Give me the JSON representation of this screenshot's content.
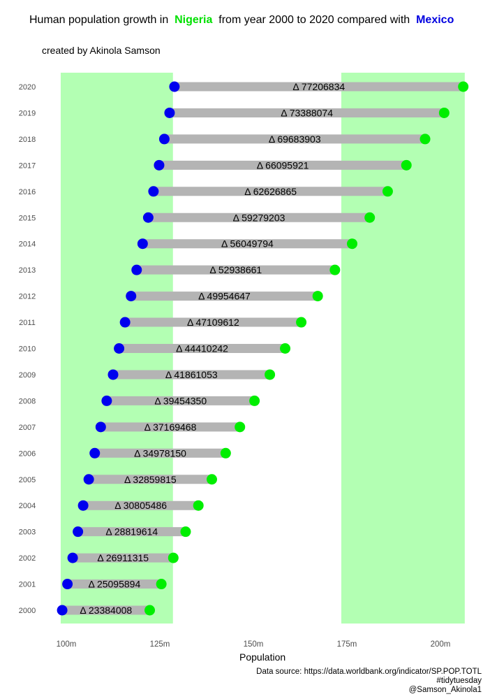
{
  "header": {
    "title_part1": "Human population growth in",
    "title_country1": "Nigeria",
    "title_part2": "from year 2000 to 2020 compared with",
    "title_country2": "Mexico",
    "subtitle": "created by Akinola Samson"
  },
  "caption": {
    "line1": "Data source: https://data.worldbank.org/indicator/SP.POP.TOTL",
    "line2": "#tidytuesday",
    "line3": "@Samson_Akinola1"
  },
  "colors": {
    "nigeria": "#00ee00",
    "mexico": "#0000ee",
    "band": "#b3ffb3",
    "segment": "#b4b4b4",
    "tick_text": "#4d4d4d"
  },
  "chart_data": {
    "type": "dumbbell",
    "xlabel": "Population",
    "ylabel": "",
    "xlim": [
      98000000,
      208000000
    ],
    "x_ticks": [
      100000000,
      125000000,
      150000000,
      175000000,
      200000000
    ],
    "x_tick_labels": [
      "100m",
      "125m",
      "150m",
      "175m",
      "200m"
    ],
    "shaded_ranges": [
      [
        98500000,
        128500000
      ],
      [
        173500000,
        206500000
      ]
    ],
    "categories": [
      "2000",
      "2001",
      "2002",
      "2003",
      "2004",
      "2005",
      "2006",
      "2007",
      "2008",
      "2009",
      "2010",
      "2011",
      "2012",
      "2013",
      "2014",
      "2015",
      "2016",
      "2017",
      "2018",
      "2019",
      "2020"
    ],
    "series": [
      {
        "name": "Mexico",
        "values": [
          98900000,
          100300000,
          101700000,
          103100000,
          104500000,
          106000000,
          107600000,
          109200000,
          110800000,
          112500000,
          114100000,
          115700000,
          117300000,
          118800000,
          120400000,
          121900000,
          123300000,
          124800000,
          126200000,
          127600000,
          128900000
        ]
      },
      {
        "name": "Nigeria",
        "values": [
          122300000,
          125400000,
          128600000,
          131900000,
          135300000,
          138900000,
          142600000,
          146400000,
          150300000,
          154400000,
          158500000,
          162800000,
          167200000,
          171800000,
          176400000,
          181100000,
          185900000,
          190900000,
          195900000,
          201000000,
          206100000
        ]
      }
    ],
    "delta_labels": [
      "Δ 23384008",
      "Δ 25095894",
      "Δ 26911315",
      "Δ 28819614",
      "Δ 30805486",
      "Δ 32859815",
      "Δ 34978150",
      "Δ 37169468",
      "Δ 39454350",
      "Δ 41861053",
      "Δ 44410242",
      "Δ 47109612",
      "Δ 49954647",
      "Δ 52938661",
      "Δ 56049794",
      "Δ 59279203",
      "Δ 62626865",
      "Δ 66095921",
      "Δ 69683903",
      "Δ 73388074",
      "Δ 77206834"
    ]
  }
}
